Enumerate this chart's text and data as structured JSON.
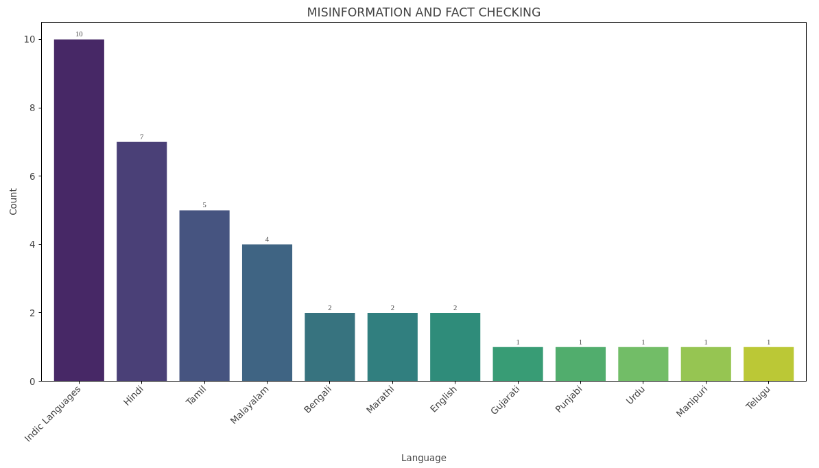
{
  "chart_data": {
    "type": "bar",
    "title": "MISINFORMATION AND FACT CHECKING",
    "xlabel": "Language",
    "ylabel": "Count",
    "categories": [
      "Indic Languages",
      "Hindi",
      "Tamil",
      "Malayalam",
      "Bengali",
      "Marathi",
      "English",
      "Gujarati",
      "Punjabi",
      "Urdu",
      "Manipuri",
      "Telugu"
    ],
    "values": [
      10,
      7,
      5,
      4,
      2,
      2,
      2,
      1,
      1,
      1,
      1,
      1
    ],
    "colors": [
      "#472866",
      "#4a4077",
      "#465480",
      "#3f6483",
      "#37737f",
      "#317f7f",
      "#2f8c7a",
      "#389c75",
      "#51ad6d",
      "#72bd67",
      "#96c552",
      "#bbc836"
    ],
    "ylim": [
      0,
      10.5
    ],
    "yticks": [
      0,
      2,
      4,
      6,
      8,
      10
    ],
    "grid": false,
    "data_labels": true
  }
}
